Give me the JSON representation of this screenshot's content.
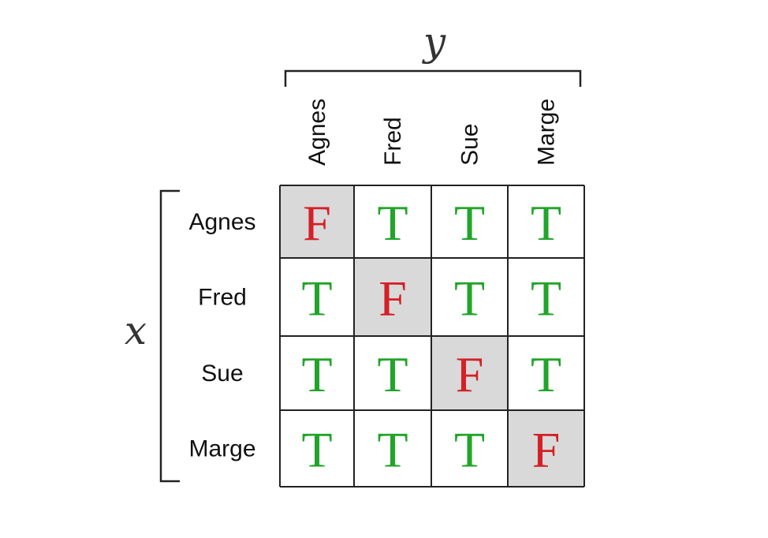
{
  "x_variable": "x",
  "y_variable": "y",
  "columns": [
    "Agnes",
    "Fred",
    "Sue",
    "Marge"
  ],
  "rows": [
    "Agnes",
    "Fred",
    "Sue",
    "Marge"
  ],
  "cells": [
    [
      "F",
      "T",
      "T",
      "T"
    ],
    [
      "T",
      "F",
      "T",
      "T"
    ],
    [
      "T",
      "T",
      "F",
      "T"
    ],
    [
      "T",
      "T",
      "T",
      "F"
    ]
  ],
  "colors": {
    "true_text": "#22a42a",
    "false_text": "#d42027",
    "highlight_fill": "#d9d9d9",
    "cell_fill": "#ffffff"
  }
}
